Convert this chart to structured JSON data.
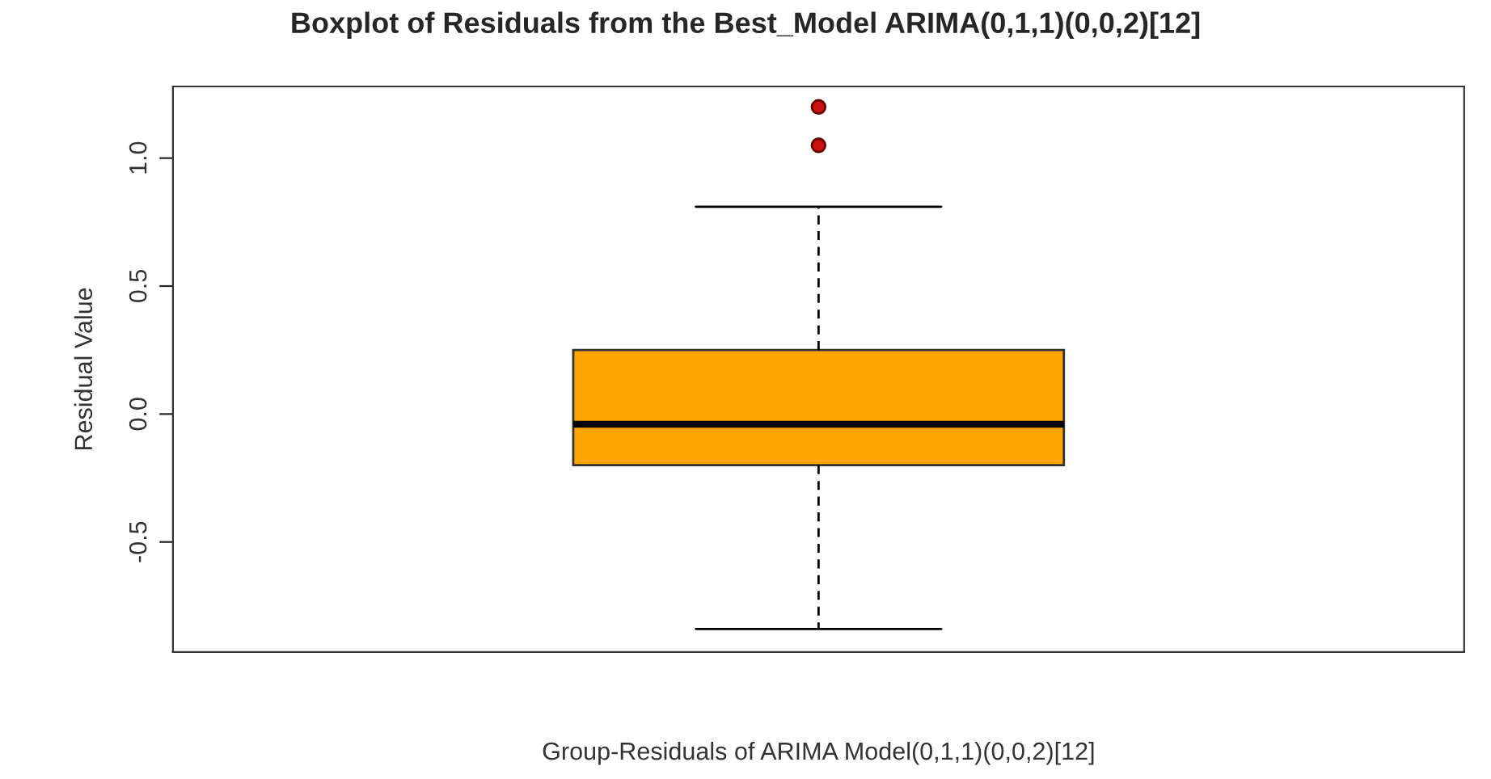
{
  "chart_data": {
    "type": "box",
    "title": "Boxplot of Residuals from the Best_Model ARIMA(0,1,1)(0,0,2)[12]",
    "xlabel": "Group-Residuals of ARIMA Model(0,1,1)(0,0,2)[12]",
    "ylabel": "Residual Value",
    "categories": [
      null
    ],
    "boxes": [
      {
        "low": -0.84,
        "q1": -0.2,
        "median": -0.04,
        "q3": 0.25,
        "high": 0.81,
        "outliers": [
          1.05,
          1.2
        ]
      }
    ],
    "colors": [
      "#ffa500"
    ],
    "ylim": [
      -0.93,
      1.28
    ],
    "yticks": [
      {
        "value": -0.5,
        "label": "-0.5"
      },
      {
        "value": 0.0,
        "label": "0.0"
      },
      {
        "value": 0.5,
        "label": "0.5"
      },
      {
        "value": 1.0,
        "label": "1.0"
      }
    ],
    "tick_labels": "y",
    "grid": false,
    "legend": false
  }
}
